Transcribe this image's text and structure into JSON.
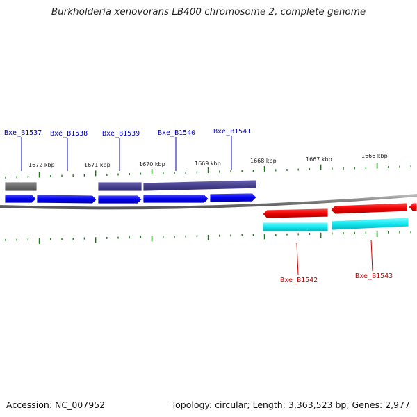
{
  "title": "Burkholderia xenovorans LB400 chromosome 2, complete genome",
  "footer": {
    "accession": "Accession: NC_007952",
    "summary": "Topology: circular; Length: 3,363,523 bp; Genes: 2,977"
  },
  "colors": {
    "forward_label": "#0000bb",
    "reverse_label": "#cc0000",
    "tick": "#1a7a1a",
    "backbone": "#777777"
  },
  "scale_labels": [
    "1672 kbp",
    "1671 kbp",
    "1670 kbp",
    "1669 kbp",
    "1668 kbp",
    "1667 kbp",
    "1666 kbp"
  ],
  "genes": [
    {
      "label": "Bxe_B1537",
      "strand": "forward"
    },
    {
      "label": "Bxe_B1538",
      "strand": "forward"
    },
    {
      "label": "Bxe_B1539",
      "strand": "forward"
    },
    {
      "label": "Bxe_B1540",
      "strand": "forward"
    },
    {
      "label": "Bxe_B1541",
      "strand": "forward"
    },
    {
      "label": "Bxe_B1542",
      "strand": "reverse"
    },
    {
      "label": "Bxe_B1543",
      "strand": "reverse"
    }
  ]
}
